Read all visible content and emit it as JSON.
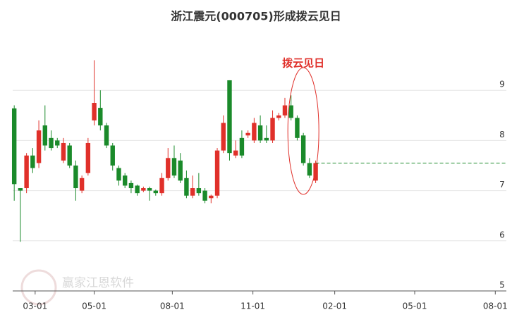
{
  "chart_data": {
    "type": "candlestick",
    "title": "浙江震元(000705)形成拨云见日",
    "annotation": "拨云见日",
    "watermark": "赢家江恩软件",
    "x": [
      0,
      1,
      2,
      3,
      4,
      5,
      6,
      7,
      8,
      9,
      10,
      11,
      12,
      13,
      14,
      15,
      16,
      17,
      18,
      19,
      20,
      21,
      22,
      23,
      24,
      25,
      26,
      27,
      28,
      29,
      30,
      31,
      32,
      33,
      34,
      35,
      36,
      37,
      38,
      39,
      40,
      41,
      42,
      43,
      44,
      45,
      46,
      47,
      48,
      49
    ],
    "open": [
      8.64,
      7.05,
      7.05,
      7.7,
      7.55,
      8.3,
      8.05,
      8.0,
      7.6,
      7.9,
      7.5,
      7.0,
      7.35,
      8.4,
      8.65,
      8.3,
      7.9,
      7.45,
      7.3,
      7.15,
      7.1,
      7.0,
      7.05,
      7.0,
      6.95,
      7.25,
      7.65,
      7.6,
      7.25,
      6.9,
      7.05,
      7.0,
      6.85,
      6.9,
      7.8,
      9.2,
      7.7,
      8.05,
      8.1,
      8.0,
      8.3,
      8.05,
      8.0,
      8.45,
      8.5,
      8.7,
      8.45,
      8.1,
      7.55,
      7.2
    ],
    "high": [
      8.7,
      7.05,
      7.75,
      7.85,
      8.4,
      8.7,
      8.2,
      8.05,
      8.05,
      7.95,
      7.6,
      7.3,
      8.05,
      9.6,
      9.0,
      8.35,
      7.95,
      7.5,
      7.35,
      7.2,
      7.12,
      7.08,
      7.08,
      7.02,
      7.35,
      7.85,
      7.9,
      7.75,
      7.4,
      7.3,
      7.35,
      7.05,
      6.92,
      7.85,
      8.5,
      9.2,
      8.0,
      8.2,
      8.2,
      8.45,
      8.5,
      8.3,
      8.6,
      8.55,
      8.85,
      8.9,
      8.5,
      8.15,
      7.65,
      7.6
    ],
    "low": [
      6.8,
      5.98,
      6.95,
      7.35,
      7.45,
      7.8,
      7.8,
      7.85,
      7.55,
      7.45,
      6.8,
      6.95,
      7.3,
      8.3,
      8.2,
      7.85,
      7.4,
      7.1,
      7.05,
      6.95,
      6.9,
      6.97,
      6.8,
      6.9,
      6.9,
      7.2,
      7.25,
      7.15,
      6.85,
      6.85,
      6.9,
      6.75,
      6.75,
      6.85,
      7.75,
      7.6,
      7.65,
      7.65,
      8.05,
      7.95,
      7.95,
      7.95,
      7.95,
      8.4,
      8.45,
      8.4,
      8.0,
      7.5,
      7.25,
      7.15
    ],
    "close": [
      7.13,
      7.0,
      7.7,
      7.45,
      8.2,
      7.9,
      7.85,
      7.9,
      7.95,
      7.5,
      7.05,
      7.25,
      7.95,
      8.75,
      8.3,
      7.9,
      7.5,
      7.2,
      7.1,
      7.05,
      6.95,
      7.05,
      7.0,
      6.95,
      7.25,
      7.65,
      7.3,
      7.2,
      6.9,
      7.05,
      6.95,
      6.8,
      6.9,
      7.8,
      8.35,
      7.75,
      7.8,
      7.7,
      8.15,
      8.35,
      8.0,
      8.0,
      8.45,
      8.5,
      8.7,
      8.45,
      8.05,
      7.55,
      7.3,
      7.55
    ],
    "up_color": "#e0302a",
    "down_color": "#1a8a2a",
    "xlim": [
      -0.25,
      80
    ],
    "xticks": [
      {
        "value": 3.4,
        "label": "03-01"
      },
      {
        "value": 13.0,
        "label": "05-01"
      },
      {
        "value": 25.7,
        "label": "08-01"
      },
      {
        "value": 38.8,
        "label": "11-01"
      },
      {
        "value": 52.1,
        "label": "02-01"
      },
      {
        "value": 65.1,
        "label": "05-01"
      },
      {
        "value": 78.2,
        "label": "08-01"
      }
    ],
    "ylim": [
      5,
      10
    ],
    "yticks": [
      5,
      6,
      7,
      8,
      9
    ],
    "grid": true
  }
}
